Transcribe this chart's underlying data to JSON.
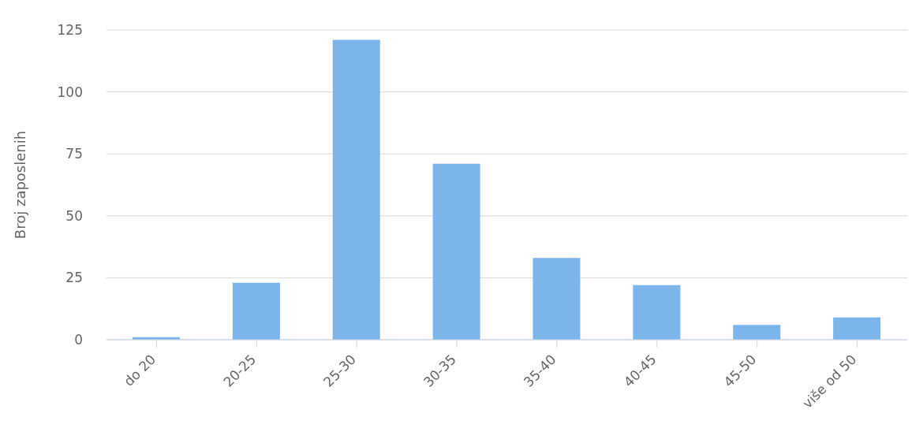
{
  "chart_data": {
    "type": "bar",
    "ylabel": "Broj zaposlenih",
    "categories": [
      "do 20",
      "20-25",
      "25-30",
      "30-35",
      "35-40",
      "40-45",
      "45-50",
      "više od 50"
    ],
    "values": [
      1,
      23,
      121,
      71,
      33,
      22,
      6,
      9
    ],
    "color": "#7cb5ec",
    "ylim": [
      0,
      125
    ],
    "yticks": [
      0,
      25,
      50,
      75,
      100,
      125
    ],
    "grid": "y"
  }
}
